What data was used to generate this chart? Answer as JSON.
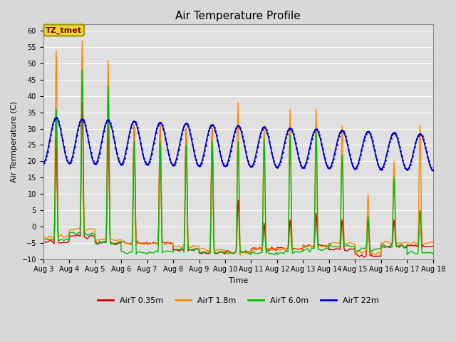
{
  "title": "Air Temperature Profile",
  "xlabel": "Time",
  "ylabel": "Air Termperature (C)",
  "ylim": [
    -10,
    62
  ],
  "yticks": [
    -10,
    -5,
    0,
    5,
    10,
    15,
    20,
    25,
    30,
    35,
    40,
    45,
    50,
    55,
    60
  ],
  "background_color": "#d8d8d8",
  "plot_bg_color": "#e0e0e0",
  "annotation_text": "TZ_tmet",
  "annotation_color": "#8b0000",
  "annotation_bg": "#e8d840",
  "series_colors": {
    "AirT 0.35m": "#cc0000",
    "AirT 1.8m": "#ff8800",
    "AirT 6.0m": "#00bb00",
    "AirT 22m": "#0000cc"
  },
  "xticklabels": [
    "Aug 3",
    "Aug 4",
    "Aug 5",
    "Aug 6",
    "Aug 7",
    "Aug 8",
    "Aug 9",
    "Aug 10",
    "Aug 11",
    "Aug 12",
    "Aug 13",
    "Aug 14",
    "Aug 15",
    "Aug 16",
    "Aug 17",
    "Aug 18"
  ],
  "figsize": [
    6.4,
    4.8
  ],
  "dpi": 100
}
